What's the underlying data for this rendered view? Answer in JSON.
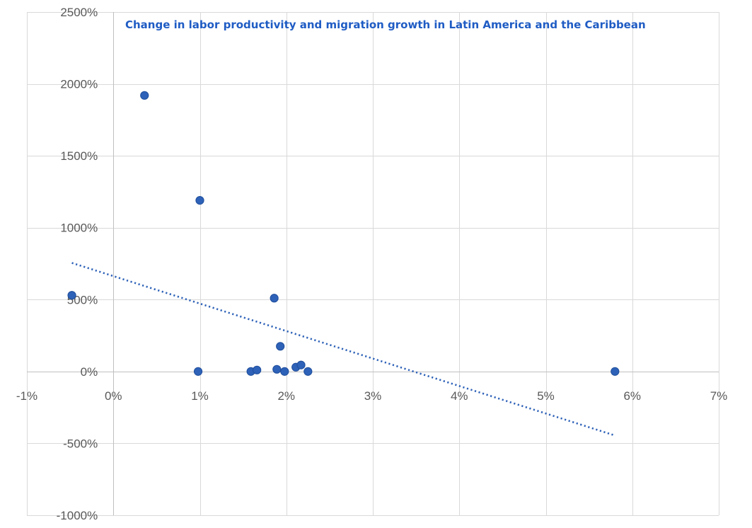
{
  "chart_data": {
    "type": "scatter",
    "title": "Change in labor productivity  and migration growth in Latin America and the Caribbean",
    "xlabel": "",
    "ylabel": "",
    "xlim": [
      -0.01,
      0.07
    ],
    "ylim": [
      -10,
      25
    ],
    "x_ticks": [
      -0.01,
      0,
      0.01,
      0.02,
      0.03,
      0.04,
      0.05,
      0.06,
      0.07
    ],
    "x_tick_labels": [
      "-1%",
      "0%",
      "1%",
      "2%",
      "3%",
      "4%",
      "5%",
      "6%",
      "7%"
    ],
    "y_ticks": [
      25,
      20,
      15,
      10,
      5,
      0,
      -5,
      -10
    ],
    "y_tick_labels": [
      "2500%",
      "2000%",
      "1500%",
      "1000%",
      "500%",
      "0%",
      "-500%",
      "-1000%"
    ],
    "grid": true,
    "legend": "none",
    "series": [
      {
        "points": [
          {
            "x": -0.0048,
            "y": 5.3
          },
          {
            "x": 0.0036,
            "y": 19.2
          },
          {
            "x": 0.01,
            "y": 11.9
          },
          {
            "x": 0.0098,
            "y": 0.0
          },
          {
            "x": 0.0159,
            "y": 0.0
          },
          {
            "x": 0.0166,
            "y": 0.1
          },
          {
            "x": 0.0186,
            "y": 5.1
          },
          {
            "x": 0.0189,
            "y": 0.15
          },
          {
            "x": 0.0193,
            "y": 1.75
          },
          {
            "x": 0.0198,
            "y": 0.0
          },
          {
            "x": 0.0211,
            "y": 0.3
          },
          {
            "x": 0.0217,
            "y": 0.45
          },
          {
            "x": 0.0225,
            "y": 0.0
          },
          {
            "x": 0.058,
            "y": 0.0
          }
        ]
      }
    ],
    "trendline": {
      "type": "linear",
      "style": "dotted",
      "x_range": [
        -0.0048,
        0.058
      ],
      "y_values": [
        7.55,
        -4.45
      ]
    },
    "colors": {
      "points": "#2E62B8",
      "point_edge": "#1F4E9C",
      "trendline": "#2E62B8",
      "title": "#1F5CC4",
      "gridline": "#D9D9D9",
      "axis": "#BFBFBF"
    }
  }
}
